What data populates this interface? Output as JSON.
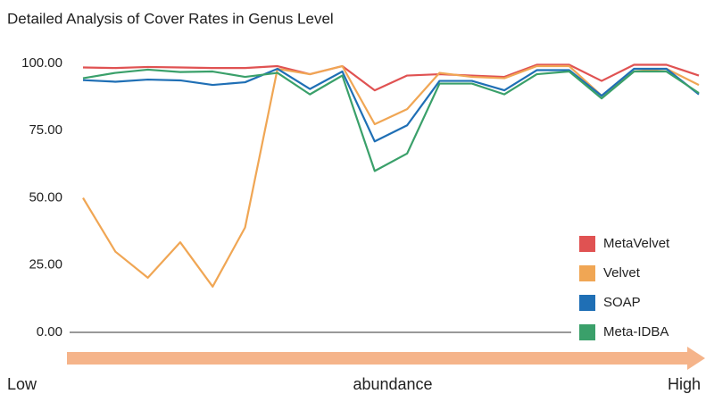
{
  "chart_data": {
    "type": "line",
    "title": "Detailed Analysis of Cover Rates in Genus Level",
    "x_axis_labels": [
      "Low",
      "abundance",
      "High"
    ],
    "categories": [
      null,
      null,
      null,
      null,
      null,
      null,
      null,
      null,
      null,
      null,
      null,
      null,
      null,
      null,
      null,
      null,
      null,
      null,
      null,
      null
    ],
    "series": [
      {
        "name": "MetaVelvet",
        "color": "#e05252",
        "values": [
          98.5,
          98.3,
          98.7,
          98.5,
          98.3,
          98.3,
          99,
          96,
          99,
          90,
          95.5,
          96,
          95.5,
          95,
          99.5,
          99.5,
          93.5,
          99.5,
          99.5,
          95.5
        ]
      },
      {
        "name": "Velvet",
        "color": "#f0a654",
        "values": [
          50,
          30,
          20.3,
          33.5,
          17,
          39,
          98,
          96,
          99,
          77.4,
          83,
          96.5,
          95,
          94.5,
          99,
          99,
          88,
          97,
          98,
          92
        ]
      },
      {
        "name": "SOAP",
        "color": "#1f6fb5",
        "values": [
          93.8,
          93.2,
          94,
          93.7,
          92,
          93,
          98,
          90.5,
          97,
          71,
          77,
          93.5,
          93.5,
          90,
          97.5,
          97.5,
          88,
          98,
          98,
          88.5
        ]
      },
      {
        "name": "Meta-IDBA",
        "color": "#3aa06a",
        "values": [
          94.5,
          96.5,
          97.7,
          96.8,
          97,
          95,
          96.5,
          88.5,
          95.5,
          60,
          66.5,
          92.5,
          92.5,
          88.5,
          96,
          97,
          87,
          97,
          97,
          89
        ]
      }
    ],
    "ylim": [
      0,
      100
    ],
    "yticks": [
      {
        "value": 0,
        "label": "0.00"
      },
      {
        "value": 25,
        "label": "25.00"
      },
      {
        "value": 50,
        "label": "50.00"
      },
      {
        "value": 75,
        "label": "75.00"
      },
      {
        "value": 100,
        "label": "100.00"
      }
    ],
    "grid": false,
    "legend": "lower right",
    "arrow_color": "#f5b48a"
  }
}
